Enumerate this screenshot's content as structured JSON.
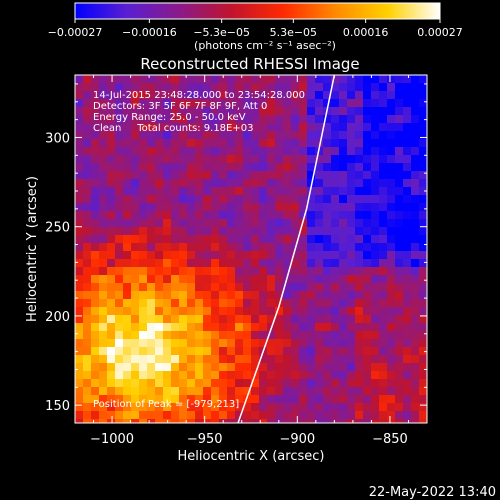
{
  "chart_data": {
    "type": "heatmap",
    "title": "Reconstructed RHESSI Image",
    "xlabel": "Heliocentric X (arcsec)",
    "ylabel": "Heliocentric Y (arcsec)",
    "xlim": [
      -1020,
      -830
    ],
    "ylim": [
      140,
      335
    ],
    "xticks": [
      -1000,
      -950,
      -900,
      -850
    ],
    "yticks": [
      150,
      200,
      250,
      300
    ],
    "xtick_labels": [
      "−1000",
      "−950",
      "−900",
      "−850"
    ],
    "ytick_labels": [
      "150",
      "200",
      "250",
      "300"
    ],
    "colorbar": {
      "min": -0.00027,
      "max": 0.00027,
      "ticks": [
        -0.00027,
        -0.00016,
        -5.3e-05,
        5.3e-05,
        0.00016,
        0.00027
      ],
      "tick_labels": [
        "−0.00027",
        "−0.00016",
        "−5.3e−05",
        "5.3e−05",
        "0.00016",
        "0.00027"
      ],
      "units_label": "(photons cm⁻² s⁻¹ asec⁻²)",
      "colormap": [
        "#0000ff",
        "#5a1fd0",
        "#8a1a8a",
        "#c0142d",
        "#ff2a00",
        "#ff8a00",
        "#ffd000",
        "#ffffff"
      ]
    },
    "annotations": [
      "14-Jul-2015 23:48:28.000 to 23:54:28.000",
      "Detectors: 3F 5F 6F 7F 8F 9F, Att 0",
      "Energy Range: 25.0 - 50.0 keV",
      "Clean     Total counts: 9.18E+03",
      "Position of Peak = [-979,213]"
    ],
    "limb_line": [
      [
        -932,
        140
      ],
      [
        -910,
        205
      ],
      [
        -895,
        260
      ],
      [
        -880,
        335
      ]
    ],
    "peak_position": [
      -979,
      213
    ]
  },
  "timestamp": "22-May-2022 13:40"
}
